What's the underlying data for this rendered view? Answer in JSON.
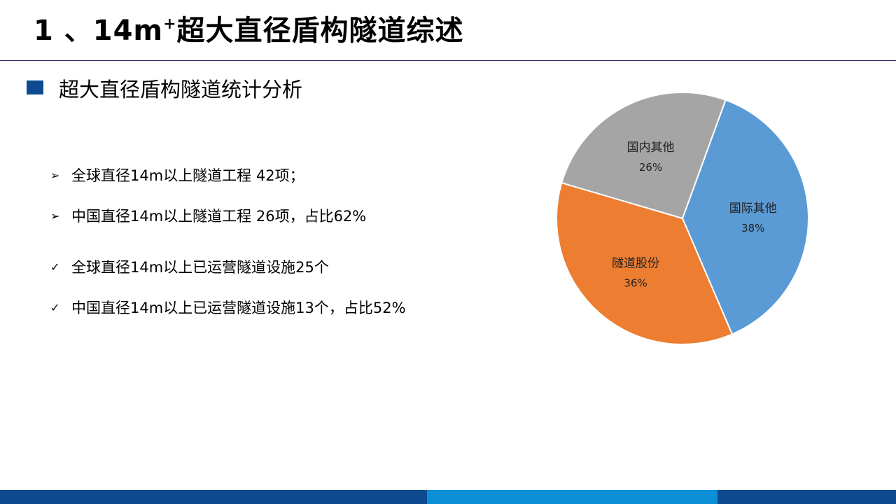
{
  "title": {
    "prefix": "1 、14m",
    "superscript": "+",
    "suffix": "超大直径盾构隧道综述"
  },
  "section": {
    "heading": "超大直径盾构隧道统计分析"
  },
  "points": [
    {
      "marker": "➢",
      "text": "全球直径14m以上隧道工程 42项；"
    },
    {
      "marker": "➢",
      "text": "中国直径14m以上隧道工程 26项，占比62%"
    },
    {
      "marker": "✓",
      "text": "全球直径14m以上已运营隧道设施25个"
    },
    {
      "marker": "✓",
      "text": "中国直径14m以上已运营隧道设施13个，占比52%"
    }
  ],
  "chart_data": {
    "type": "pie",
    "slices": [
      {
        "name": "国际其他",
        "value": 38,
        "label": "38%",
        "color": "#5b9bd5"
      },
      {
        "name": "隧道股份",
        "value": 36,
        "label": "36%",
        "color": "#ed7d31"
      },
      {
        "name": "国内其他",
        "value": 26,
        "label": "26%",
        "color": "#a5a5a5"
      }
    ],
    "start_angle_deg": 20,
    "direction": "clockwise",
    "legend": "none",
    "data_labels": "inside"
  },
  "colors": {
    "title_rule": "#2b2b6b",
    "section_bullet": "#0e4a8f",
    "footer_left": "#0e4a8f",
    "footer_mid": "#0b8fd6",
    "footer_right": "#0e4a8f"
  }
}
